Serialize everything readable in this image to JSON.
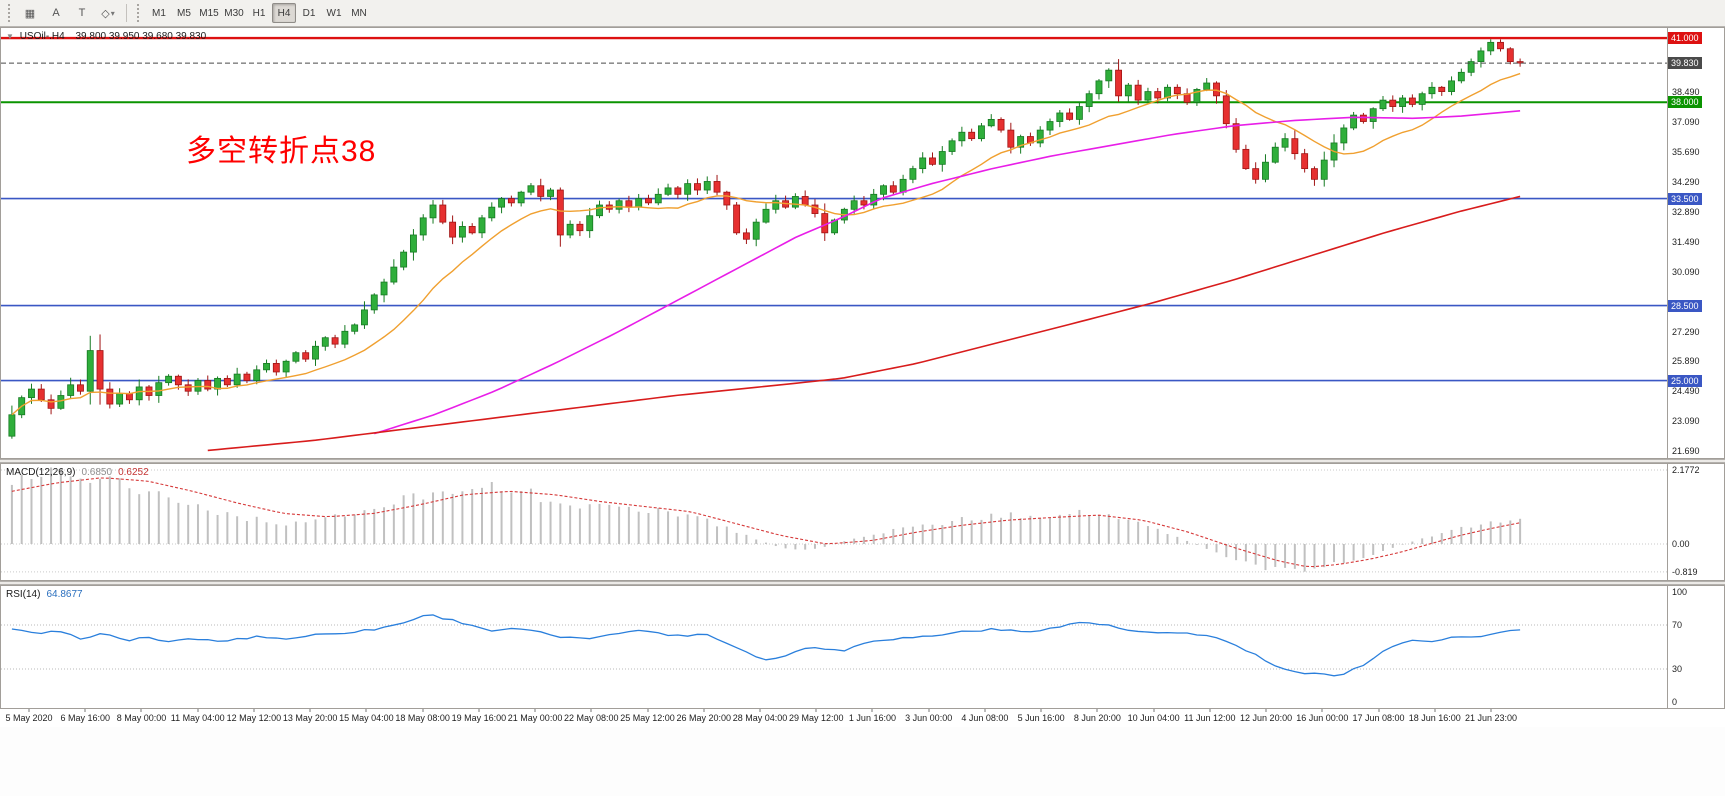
{
  "toolbar": {
    "tools": [
      {
        "name": "charts-grid",
        "glyph": "▦"
      },
      {
        "name": "insert-text",
        "glyph": "A"
      },
      {
        "name": "text-label",
        "glyph": "T"
      },
      {
        "name": "shapes",
        "glyph": "◇"
      },
      {
        "name": "shapes-dropdown",
        "glyph": "▾"
      }
    ],
    "timeframes": [
      "M1",
      "M5",
      "M15",
      "M30",
      "H1",
      "H4",
      "D1",
      "W1",
      "MN"
    ],
    "active_timeframe": "H4"
  },
  "chart": {
    "marker": "▼",
    "title": "USOil-.H4",
    "ohlc": "39.800 39.950 39.680 39.830",
    "annotation": {
      "text": "多空转折点38",
      "color": "#ff0000"
    }
  },
  "chart_data": {
    "type": "candlestick",
    "symbol": "USOil",
    "period": "H4",
    "up_color": "#2fae3b",
    "down_color": "#e63030",
    "open_first": 22.4,
    "closes": [
      23.4,
      24.2,
      24.6,
      24.1,
      23.7,
      24.3,
      24.8,
      24.5,
      26.4,
      24.6,
      23.9,
      24.4,
      24.1,
      24.7,
      24.3,
      24.9,
      25.2,
      24.8,
      24.5,
      25.0,
      24.6,
      25.1,
      24.8,
      25.3,
      25.0,
      25.5,
      25.8,
      25.4,
      25.9,
      26.3,
      26.0,
      26.6,
      27.0,
      26.7,
      27.3,
      27.6,
      28.3,
      29.0,
      29.6,
      30.3,
      31.0,
      31.8,
      32.6,
      33.2,
      32.4,
      31.7,
      32.2,
      31.9,
      32.6,
      33.1,
      33.5,
      33.3,
      33.8,
      34.1,
      33.6,
      33.9,
      31.8,
      32.3,
      32.0,
      32.7,
      33.2,
      33.0,
      33.4,
      33.1,
      33.5,
      33.3,
      33.7,
      34.0,
      33.7,
      34.2,
      33.9,
      34.3,
      33.8,
      33.2,
      31.9,
      31.6,
      32.4,
      33.0,
      33.4,
      33.1,
      33.6,
      33.2,
      32.8,
      31.9,
      32.5,
      33.0,
      33.4,
      33.2,
      33.7,
      34.1,
      33.8,
      34.4,
      34.9,
      35.4,
      35.1,
      35.7,
      36.2,
      36.6,
      36.3,
      36.9,
      37.2,
      36.7,
      35.9,
      36.4,
      36.1,
      36.7,
      37.1,
      37.5,
      37.2,
      37.8,
      38.4,
      39.0,
      39.5,
      38.3,
      38.8,
      38.1,
      38.5,
      38.2,
      38.7,
      38.4,
      38.0,
      38.6,
      38.9,
      38.3,
      37.0,
      35.8,
      34.9,
      34.4,
      35.2,
      35.9,
      36.3,
      35.6,
      34.9,
      34.4,
      35.3,
      36.1,
      36.8,
      37.4,
      37.1,
      37.7,
      38.1,
      37.8,
      38.2,
      37.9,
      38.4,
      38.7,
      38.5,
      39.0,
      39.4,
      39.9,
      40.4,
      40.8,
      40.5,
      39.9,
      39.83
    ],
    "price_axis": {
      "max": 41.47,
      "min": 21.38,
      "ticks": [
        {
          "v": 38.49,
          "t": "38.490"
        },
        {
          "v": 37.09,
          "t": "37.090"
        },
        {
          "v": 35.69,
          "t": "35.690"
        },
        {
          "v": 34.29,
          "t": "34.290"
        },
        {
          "v": 32.89,
          "t": "32.890"
        },
        {
          "v": 31.49,
          "t": "31.490"
        },
        {
          "v": 30.09,
          "t": "30.090"
        },
        {
          "v": 27.29,
          "t": "27.290"
        },
        {
          "v": 25.89,
          "t": "25.890"
        },
        {
          "v": 24.49,
          "t": "24.490"
        },
        {
          "v": 23.09,
          "t": "23.090"
        },
        {
          "v": 21.69,
          "t": "21.690"
        }
      ]
    },
    "hlines": [
      {
        "price": 41.0,
        "label": "41.000",
        "color": "#dd1111",
        "width": 2.4
      },
      {
        "price": 38.0,
        "label": "38.000",
        "color": "#0a9400",
        "width": 2
      },
      {
        "price": 33.5,
        "label": "33.500",
        "color": "#3a57c4",
        "width": 1.6
      },
      {
        "price": 28.5,
        "label": "28.500",
        "color": "#3a57c4",
        "width": 1.6
      },
      {
        "price": 25.0,
        "label": "25.000",
        "color": "#3a57c4",
        "width": 1.6
      }
    ],
    "current_price": {
      "value": 39.83,
      "label": "39.830",
      "color": "#4a4a4a"
    },
    "moving_averages": {
      "fast": {
        "color": "#f0a030",
        "period": 13
      },
      "mid": {
        "color": "#e81ee8",
        "points": [
          [
            0.235,
            22.4
          ],
          [
            0.28,
            23.4
          ],
          [
            0.32,
            24.5
          ],
          [
            0.36,
            25.8
          ],
          [
            0.4,
            27.2
          ],
          [
            0.44,
            28.7
          ],
          [
            0.48,
            30.2
          ],
          [
            0.52,
            31.7
          ],
          [
            0.55,
            32.6
          ],
          [
            0.576,
            33.5
          ],
          [
            0.61,
            34.2
          ],
          [
            0.65,
            34.9
          ],
          [
            0.69,
            35.5
          ],
          [
            0.73,
            36.0
          ],
          [
            0.77,
            36.5
          ],
          [
            0.81,
            36.9
          ],
          [
            0.85,
            37.15
          ],
          [
            0.89,
            37.3
          ],
          [
            0.93,
            37.25
          ],
          [
            0.96,
            37.35
          ],
          [
            1,
            37.6
          ]
        ]
      },
      "slow": {
        "color": "#d81c1c",
        "points": [
          [
            0.125,
            21.7
          ],
          [
            0.2,
            22.2
          ],
          [
            0.28,
            22.9
          ],
          [
            0.36,
            23.6
          ],
          [
            0.44,
            24.3
          ],
          [
            0.51,
            24.8
          ],
          [
            0.55,
            25.1
          ],
          [
            0.6,
            25.8
          ],
          [
            0.65,
            26.7
          ],
          [
            0.7,
            27.6
          ],
          [
            0.755,
            28.6
          ],
          [
            0.81,
            29.7
          ],
          [
            0.86,
            30.8
          ],
          [
            0.91,
            31.9
          ],
          [
            0.96,
            32.9
          ],
          [
            1,
            33.6
          ]
        ]
      }
    },
    "macd": {
      "name": "MACD(12,26,9)",
      "value_main": "0.6850",
      "value_signal": "0.6252",
      "histogram_color": "#c0c0c0",
      "signal_color": "#d63a3a",
      "scale_labels": [
        {
          "v": 2.1772,
          "t": "2.1772"
        },
        {
          "v": 0,
          "t": "0.00"
        },
        {
          "v": -0.819,
          "t": "-0.819"
        }
      ],
      "histogram_curve": [
        [
          0,
          1.95
        ],
        [
          0.02,
          2.1
        ],
        [
          0.035,
          2.17
        ],
        [
          0.06,
          1.95
        ],
        [
          0.09,
          1.6
        ],
        [
          0.12,
          1.15
        ],
        [
          0.15,
          0.8
        ],
        [
          0.18,
          0.6
        ],
        [
          0.21,
          0.75
        ],
        [
          0.24,
          1.0
        ],
        [
          0.27,
          1.45
        ],
        [
          0.3,
          1.72
        ],
        [
          0.33,
          1.6
        ],
        [
          0.36,
          1.3
        ],
        [
          0.39,
          1.05
        ],
        [
          0.42,
          1.05
        ],
        [
          0.45,
          0.85
        ],
        [
          0.47,
          0.55
        ],
        [
          0.49,
          0.2
        ],
        [
          0.51,
          -0.12
        ],
        [
          0.53,
          -0.18
        ],
        [
          0.55,
          0.05
        ],
        [
          0.57,
          0.3
        ],
        [
          0.6,
          0.5
        ],
        [
          0.63,
          0.72
        ],
        [
          0.66,
          0.85
        ],
        [
          0.69,
          0.85
        ],
        [
          0.71,
          0.95
        ],
        [
          0.73,
          0.8
        ],
        [
          0.75,
          0.55
        ],
        [
          0.77,
          0.25
        ],
        [
          0.79,
          -0.1
        ],
        [
          0.81,
          -0.45
        ],
        [
          0.83,
          -0.7
        ],
        [
          0.85,
          -0.8
        ],
        [
          0.87,
          -0.65
        ],
        [
          0.89,
          -0.45
        ],
        [
          0.91,
          -0.2
        ],
        [
          0.93,
          0.1
        ],
        [
          0.95,
          0.35
        ],
        [
          0.97,
          0.55
        ],
        [
          1,
          0.685
        ]
      ],
      "signal_curve": [
        [
          0,
          1.55
        ],
        [
          0.03,
          1.8
        ],
        [
          0.06,
          1.95
        ],
        [
          0.09,
          1.85
        ],
        [
          0.12,
          1.55
        ],
        [
          0.15,
          1.2
        ],
        [
          0.18,
          0.9
        ],
        [
          0.21,
          0.8
        ],
        [
          0.24,
          0.9
        ],
        [
          0.27,
          1.15
        ],
        [
          0.3,
          1.45
        ],
        [
          0.33,
          1.55
        ],
        [
          0.36,
          1.45
        ],
        [
          0.39,
          1.25
        ],
        [
          0.42,
          1.1
        ],
        [
          0.45,
          0.95
        ],
        [
          0.48,
          0.6
        ],
        [
          0.51,
          0.25
        ],
        [
          0.54,
          0.0
        ],
        [
          0.57,
          0.1
        ],
        [
          0.6,
          0.35
        ],
        [
          0.63,
          0.55
        ],
        [
          0.66,
          0.7
        ],
        [
          0.69,
          0.78
        ],
        [
          0.72,
          0.85
        ],
        [
          0.75,
          0.7
        ],
        [
          0.78,
          0.35
        ],
        [
          0.81,
          -0.1
        ],
        [
          0.84,
          -0.5
        ],
        [
          0.86,
          -0.68
        ],
        [
          0.88,
          -0.6
        ],
        [
          0.9,
          -0.45
        ],
        [
          0.92,
          -0.25
        ],
        [
          0.94,
          0.0
        ],
        [
          0.96,
          0.25
        ],
        [
          0.98,
          0.45
        ],
        [
          1,
          0.6252
        ]
      ]
    },
    "rsi": {
      "name": "RSI(14)",
      "value": "64.8677",
      "color": "#2a7fdc",
      "levels": [
        {
          "v": 100,
          "t": "100"
        },
        {
          "v": 70,
          "t": "70"
        },
        {
          "v": 30,
          "t": "30"
        },
        {
          "v": 0,
          "t": "0"
        }
      ],
      "points": [
        [
          0,
          66
        ],
        [
          0.015,
          62
        ],
        [
          0.03,
          64
        ],
        [
          0.045,
          58
        ],
        [
          0.06,
          62
        ],
        [
          0.075,
          56
        ],
        [
          0.09,
          59
        ],
        [
          0.105,
          54
        ],
        [
          0.12,
          58
        ],
        [
          0.135,
          55
        ],
        [
          0.15,
          57
        ],
        [
          0.165,
          60
        ],
        [
          0.18,
          57
        ],
        [
          0.2,
          61
        ],
        [
          0.22,
          63
        ],
        [
          0.24,
          66
        ],
        [
          0.26,
          72
        ],
        [
          0.275,
          80
        ],
        [
          0.29,
          75
        ],
        [
          0.305,
          70
        ],
        [
          0.32,
          64
        ],
        [
          0.335,
          67
        ],
        [
          0.35,
          63
        ],
        [
          0.365,
          59
        ],
        [
          0.38,
          57
        ],
        [
          0.4,
          63
        ],
        [
          0.42,
          65
        ],
        [
          0.44,
          60
        ],
        [
          0.46,
          62
        ],
        [
          0.48,
          50
        ],
        [
          0.5,
          38
        ],
        [
          0.515,
          43
        ],
        [
          0.53,
          51
        ],
        [
          0.55,
          46
        ],
        [
          0.57,
          56
        ],
        [
          0.59,
          58
        ],
        [
          0.61,
          60
        ],
        [
          0.63,
          64
        ],
        [
          0.65,
          66
        ],
        [
          0.67,
          64
        ],
        [
          0.69,
          67
        ],
        [
          0.71,
          73
        ],
        [
          0.725,
          70
        ],
        [
          0.74,
          65
        ],
        [
          0.76,
          62
        ],
        [
          0.78,
          63
        ],
        [
          0.8,
          58
        ],
        [
          0.82,
          46
        ],
        [
          0.84,
          31
        ],
        [
          0.855,
          25
        ],
        [
          0.87,
          26
        ],
        [
          0.88,
          24
        ],
        [
          0.895,
          33
        ],
        [
          0.91,
          47
        ],
        [
          0.925,
          56
        ],
        [
          0.94,
          54
        ],
        [
          0.955,
          60
        ],
        [
          0.97,
          58
        ],
        [
          0.985,
          64
        ],
        [
          1,
          64.87
        ]
      ]
    },
    "time_labels": [
      "5 May 2020",
      "6 May 16:00",
      "8 May 00:00",
      "11 May 04:00",
      "12 May 12:00",
      "13 May 20:00",
      "15 May 04:00",
      "18 May 08:00",
      "19 May 16:00",
      "21 May 00:00",
      "22 May 08:00",
      "25 May 12:00",
      "26 May 20:00",
      "28 May 04:00",
      "29 May 12:00",
      "1 Jun 16:00",
      "3 Jun 00:00",
      "4 Jun 08:00",
      "5 Jun 16:00",
      "8 Jun 20:00",
      "10 Jun 04:00",
      "11 Jun 12:00",
      "12 Jun 20:00",
      "16 Jun 00:00",
      "17 Jun 08:00",
      "18 Jun 16:00",
      "21 Jun 23:00"
    ]
  }
}
